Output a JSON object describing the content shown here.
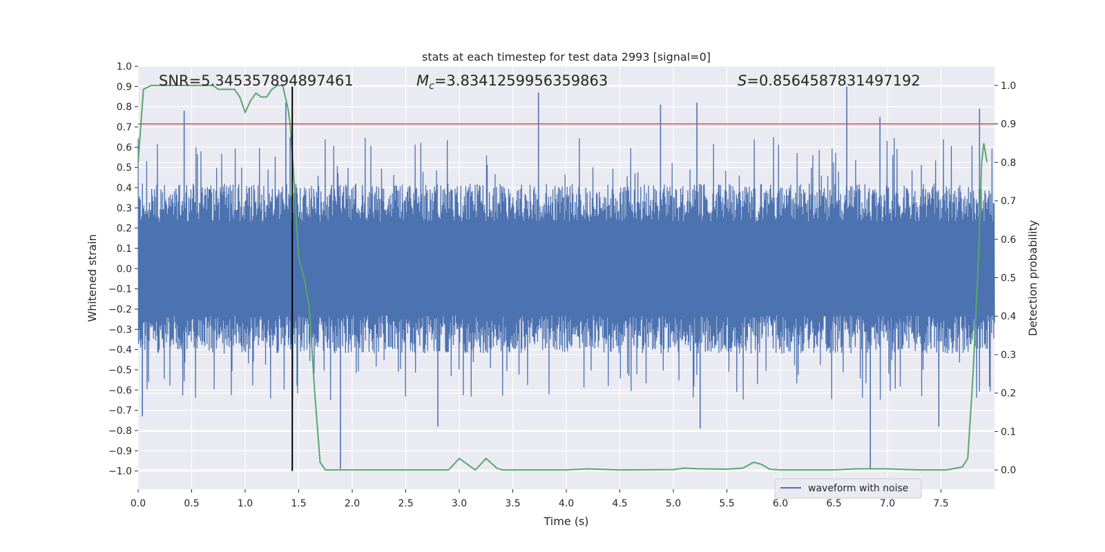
{
  "chart_data": {
    "type": "line",
    "title": "stats at each timestep for test data 2993 [signal=0]",
    "xlabel": "Time (s)",
    "ylabel_left": "Whitened strain",
    "ylabel_right": "Detection probability",
    "xlim": [
      0,
      8
    ],
    "ylim_left": [
      -1.09,
      1.0
    ],
    "ylim_right": [
      -0.05,
      1.05
    ],
    "x_ticks": [
      "0.0",
      "0.5",
      "1.0",
      "1.5",
      "2.0",
      "2.5",
      "3.0",
      "3.5",
      "4.0",
      "4.5",
      "5.0",
      "5.5",
      "6.0",
      "6.5",
      "7.0",
      "7.5"
    ],
    "y_left_ticks": [
      "1.0",
      "0.9",
      "0.8",
      "0.7",
      "0.6",
      "0.5",
      "0.4",
      "0.3",
      "0.2",
      "0.1",
      "0.0",
      "−0.1",
      "−0.2",
      "−0.3",
      "−0.4",
      "−0.5",
      "−0.6",
      "−0.7",
      "−0.8",
      "−0.9",
      "−1.0"
    ],
    "y_right_ticks": [
      "1.0",
      "0.9",
      "0.8",
      "0.7",
      "0.6",
      "0.5",
      "0.4",
      "0.3",
      "0.2",
      "0.1",
      "0.0"
    ],
    "grid": true,
    "legend_position": "lower-right",
    "annotations": {
      "snr": "SNR=5.345357894897461",
      "mc_prefix": "M",
      "mc_sub": "c",
      "mc_value": "=3.8341259956359863",
      "s_prefix": "S",
      "s_value": "=0.8564587831497192"
    },
    "series": [
      {
        "name": "waveform with noise",
        "axis": "left",
        "color": "#4c72b0",
        "description": "dense noisy whitened strain, bulk within ±0.33, spikes to about ±0.9",
        "envelope_typical": [
          -0.42,
          0.42
        ],
        "spikes": [
          {
            "x": 0.04,
            "y": -0.73
          },
          {
            "x": 0.43,
            "y": 0.78
          },
          {
            "x": 1.38,
            "y": 0.82
          },
          {
            "x": 1.42,
            "y": 0.65
          },
          {
            "x": 1.89,
            "y": -0.99
          },
          {
            "x": 2.8,
            "y": -0.78
          },
          {
            "x": 3.74,
            "y": 0.87
          },
          {
            "x": 4.88,
            "y": 0.81
          },
          {
            "x": 5.22,
            "y": 0.82
          },
          {
            "x": 5.25,
            "y": -0.79
          },
          {
            "x": 6.62,
            "y": 0.9
          },
          {
            "x": 6.84,
            "y": -0.99
          },
          {
            "x": 7.86,
            "y": 0.79
          },
          {
            "x": 7.48,
            "y": -0.78
          },
          {
            "x": 6.93,
            "y": 0.75
          }
        ]
      },
      {
        "name": "",
        "axis": "right",
        "color": "#55a868",
        "x": [
          0.0,
          0.05,
          0.12,
          0.2,
          0.3,
          0.5,
          0.7,
          0.75,
          0.85,
          0.9,
          0.95,
          1.0,
          1.05,
          1.1,
          1.15,
          1.2,
          1.25,
          1.3,
          1.35,
          1.4,
          1.42,
          1.45,
          1.5,
          1.55,
          1.6,
          1.65,
          1.7,
          1.75,
          1.8,
          2.0,
          2.5,
          2.75,
          2.9,
          3.0,
          3.1,
          3.15,
          3.25,
          3.35,
          3.4,
          3.5,
          4.0,
          4.2,
          4.5,
          5.0,
          5.1,
          5.25,
          5.5,
          5.65,
          5.75,
          5.82,
          5.9,
          6.0,
          6.5,
          6.7,
          7.0,
          7.3,
          7.55,
          7.7,
          7.75,
          7.8,
          7.85,
          7.88,
          7.9,
          7.93
        ],
        "values": [
          0.8,
          0.99,
          1.0,
          1.0,
          1.0,
          1.0,
          1.0,
          0.99,
          0.99,
          0.99,
          0.97,
          0.93,
          0.96,
          0.98,
          0.97,
          0.97,
          0.99,
          1.0,
          1.0,
          0.94,
          0.9,
          0.78,
          0.55,
          0.5,
          0.42,
          0.2,
          0.02,
          0.0,
          0.0,
          0.0,
          0.0,
          0.0,
          0.0,
          0.03,
          0.01,
          0.0,
          0.03,
          0.005,
          0.0,
          0.0,
          0.0,
          0.003,
          0.0,
          0.001,
          0.005,
          0.003,
          0.002,
          0.005,
          0.02,
          0.015,
          0.002,
          0.0,
          0.0,
          0.003,
          0.003,
          0.0,
          0.0,
          0.008,
          0.03,
          0.25,
          0.55,
          0.8,
          0.85,
          0.8
        ]
      },
      {
        "name": "",
        "axis": "right",
        "color": "#c44e52",
        "description": "horizontal threshold line",
        "value": 0.9
      },
      {
        "name": "",
        "axis": "left",
        "color": "#000000",
        "description": "vertical marker line",
        "x": 1.44,
        "y_range": [
          -1.0,
          0.9
        ]
      }
    ]
  }
}
